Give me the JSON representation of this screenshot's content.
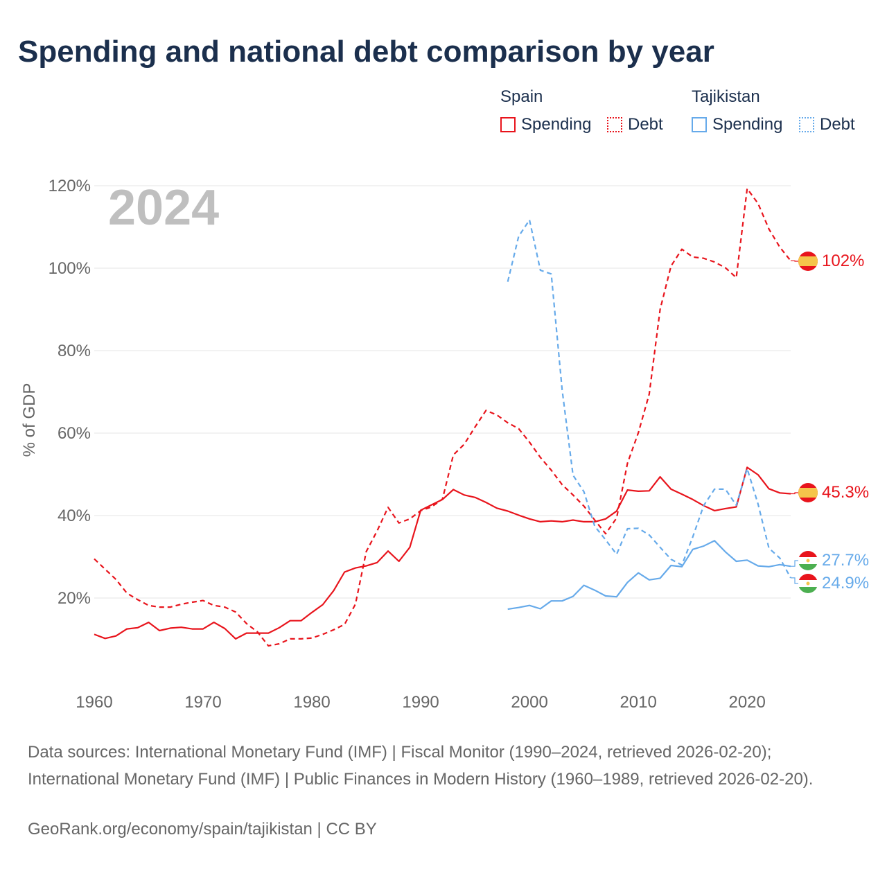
{
  "title": "Spending and national debt comparison by year",
  "legend": {
    "groups": [
      {
        "country": "Spain",
        "color": "#e8141c",
        "items": [
          {
            "label": "Spending",
            "style": "solid"
          },
          {
            "label": "Debt",
            "style": "dotted"
          }
        ]
      },
      {
        "country": "Tajikistan",
        "color": "#66aaea",
        "items": [
          {
            "label": "Spending",
            "style": "solid"
          },
          {
            "label": "Debt",
            "style": "dotted"
          }
        ]
      }
    ]
  },
  "colors": {
    "spain": "#e8141c",
    "tajikistan": "#66aaea",
    "grid": "#e5e5e5",
    "axis_text": "#666666",
    "year_watermark": "#bfbfbf"
  },
  "chart_data": {
    "type": "line",
    "title": "Spending and national debt comparison by year",
    "year_label": "2024",
    "ylabel": "% of GDP",
    "xlabel": "",
    "xlim": [
      1960,
      2024
    ],
    "ylim": [
      0,
      120
    ],
    "x_ticks": [
      1960,
      1970,
      1980,
      1990,
      2000,
      2010,
      2020
    ],
    "y_ticks": [
      20,
      40,
      60,
      80,
      100,
      120
    ],
    "y_tick_labels": [
      "20%",
      "40%",
      "60%",
      "80%",
      "100%",
      "120%"
    ],
    "series": [
      {
        "name": "Spain Debt",
        "country": "Spain",
        "metric": "Debt",
        "color": "#e8141c",
        "dash": "dashed",
        "end_label": "102%",
        "end_value": 102,
        "x": [
          1960,
          1961,
          1962,
          1963,
          1964,
          1965,
          1966,
          1967,
          1968,
          1969,
          1970,
          1971,
          1972,
          1973,
          1974,
          1975,
          1976,
          1977,
          1978,
          1979,
          1980,
          1981,
          1982,
          1983,
          1984,
          1985,
          1986,
          1987,
          1988,
          1989,
          1990,
          1991,
          1992,
          1993,
          1994,
          1995,
          1996,
          1997,
          1998,
          1999,
          2000,
          2001,
          2002,
          2003,
          2004,
          2005,
          2006,
          2007,
          2008,
          2009,
          2010,
          2011,
          2012,
          2013,
          2014,
          2015,
          2016,
          2017,
          2018,
          2019,
          2020,
          2021,
          2022,
          2023,
          2024
        ],
        "y": [
          29.5,
          27,
          24.5,
          21.2,
          19.6,
          18.2,
          17.8,
          17.8,
          18.5,
          19,
          19.4,
          18.2,
          17.8,
          16.6,
          13.8,
          11.8,
          8.4,
          8.9,
          10.1,
          10.1,
          10.3,
          11.2,
          12.3,
          13.6,
          18.5,
          31.3,
          36.3,
          42,
          38.2,
          39.2,
          41.2,
          42.1,
          44,
          54.7,
          57.3,
          61.5,
          65.5,
          64.4,
          62.5,
          61.1,
          57.8,
          54.1,
          51,
          47.5,
          45,
          42.3,
          38.9,
          35.6,
          39.4,
          52.7,
          60.1,
          69.5,
          90,
          100.5,
          104.6,
          102.7,
          102.4,
          101.5,
          100.1,
          97.7,
          119.3,
          115.7,
          109.5,
          105.1,
          101.8
        ]
      },
      {
        "name": "Spain Spending",
        "country": "Spain",
        "metric": "Spending",
        "color": "#e8141c",
        "dash": "solid",
        "end_label": "45.3%",
        "end_value": 45.3,
        "x": [
          1960,
          1961,
          1962,
          1963,
          1964,
          1965,
          1966,
          1967,
          1968,
          1969,
          1970,
          1971,
          1972,
          1973,
          1974,
          1975,
          1976,
          1977,
          1978,
          1979,
          1980,
          1981,
          1982,
          1983,
          1984,
          1985,
          1986,
          1987,
          1988,
          1989,
          1990,
          1991,
          1992,
          1993,
          1994,
          1995,
          1996,
          1997,
          1998,
          1999,
          2000,
          2001,
          2002,
          2003,
          2004,
          2005,
          2006,
          2007,
          2008,
          2009,
          2010,
          2011,
          2012,
          2013,
          2014,
          2015,
          2016,
          2017,
          2018,
          2019,
          2020,
          2021,
          2022,
          2023,
          2024
        ],
        "y": [
          11.2,
          10.2,
          10.8,
          12.5,
          12.8,
          14.1,
          12.1,
          12.7,
          12.9,
          12.5,
          12.5,
          14.1,
          12.6,
          10.1,
          11.5,
          11.5,
          11.5,
          12.8,
          14.5,
          14.5,
          16.5,
          18.4,
          21.8,
          26.3,
          27.3,
          27.8,
          28.6,
          31.4,
          28.9,
          32.3,
          41.3,
          42.6,
          43.9,
          46.3,
          45,
          44.4,
          43.2,
          41.8,
          41.1,
          40.1,
          39.2,
          38.5,
          38.7,
          38.5,
          38.9,
          38.5,
          38.5,
          39.2,
          41.1,
          46.2,
          45.9,
          46,
          49.4,
          46.4,
          45.2,
          43.9,
          42.4,
          41.2,
          41.7,
          42.1,
          51.7,
          49.9,
          46.5,
          45.5,
          45.3
        ]
      },
      {
        "name": "Tajikistan Debt",
        "country": "Tajikistan",
        "metric": "Debt",
        "color": "#66aaea",
        "dash": "dashed",
        "end_label": "24.9%",
        "end_value": 24.9,
        "x": [
          1998,
          1999,
          2000,
          2001,
          2002,
          2003,
          2004,
          2005,
          2006,
          2007,
          2008,
          2009,
          2010,
          2011,
          2012,
          2013,
          2014,
          2015,
          2016,
          2017,
          2018,
          2019,
          2020,
          2021,
          2022,
          2023,
          2024
        ],
        "y": [
          96.7,
          107.7,
          111.7,
          99.5,
          98.6,
          70.5,
          49.8,
          45.8,
          37.4,
          34.1,
          30.6,
          36.8,
          36.9,
          35.3,
          32.3,
          29.4,
          28,
          34.8,
          42.4,
          46.4,
          46.4,
          42.5,
          51.4,
          42.8,
          32.1,
          29.7,
          24.9
        ]
      },
      {
        "name": "Tajikistan Spending",
        "country": "Tajikistan",
        "metric": "Spending",
        "color": "#66aaea",
        "dash": "solid",
        "end_label": "27.7%",
        "end_value": 27.7,
        "x": [
          1998,
          1999,
          2000,
          2001,
          2002,
          2003,
          2004,
          2005,
          2006,
          2007,
          2008,
          2009,
          2010,
          2011,
          2012,
          2013,
          2014,
          2015,
          2016,
          2017,
          2018,
          2019,
          2020,
          2021,
          2022,
          2023,
          2024
        ],
        "y": [
          17.3,
          17.7,
          18.2,
          17.4,
          19.3,
          19.3,
          20.4,
          23.1,
          21.9,
          20.5,
          20.3,
          23.8,
          26.1,
          24.4,
          24.8,
          27.9,
          27.6,
          31.8,
          32.6,
          33.9,
          31.2,
          28.9,
          29.2,
          27.8,
          27.6,
          28.1,
          27.7
        ]
      }
    ]
  },
  "source": "Data sources: International Monetary Fund (IMF) | Fiscal Monitor (1990–2024, retrieved 2026-02-20); International Monetary Fund (IMF) | Public Finances in Modern History (1960–1989, retrieved 2026-02-20).",
  "credit": "GeoRank.org/economy/spain/tajikistan | CC BY"
}
